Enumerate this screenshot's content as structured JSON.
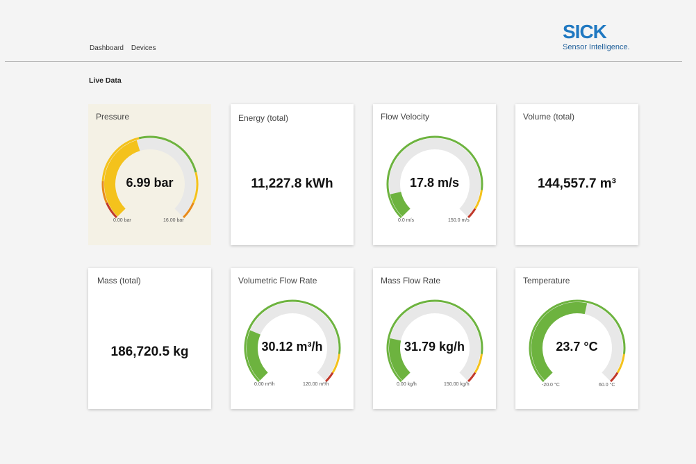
{
  "nav": {
    "items": [
      "Dashboard",
      "Devices"
    ]
  },
  "logo": {
    "brand": "SICK",
    "tagline": "Sensor Intelligence."
  },
  "section_title": "Live Data",
  "colors": {
    "green": "#6db33f",
    "yellow": "#f4c21c",
    "orange": "#e88a1a",
    "red": "#c0392b",
    "track": "#e8e8e8",
    "brand_blue": "#1f78c1"
  },
  "cards": {
    "pressure": {
      "label": "Pressure",
      "value": "6.99 bar",
      "min": "0.00 bar",
      "max": "16.00 bar",
      "fraction": 0.437
    },
    "energy": {
      "label": "Energy (total)",
      "value": "11,227.8 kWh"
    },
    "flow_velocity": {
      "label": "Flow Velocity",
      "value": "17.8 m/s",
      "min": "0.0 m/s",
      "max": "150.0 m/s",
      "fraction": 0.119
    },
    "volume": {
      "label": "Volume (total)",
      "value": "144,557.7 m³"
    },
    "mass": {
      "label": "Mass (total)",
      "value": "186,720.5 kg"
    },
    "volumetric_flow": {
      "label": "Volumetric Flow Rate",
      "value": "30.12 m³/h",
      "min": "0.00 m³/h",
      "max": "120.00 m³/h",
      "fraction": 0.251
    },
    "mass_flow": {
      "label": "Mass Flow Rate",
      "value": "31.79 kg/h",
      "min": "0.00 kg/h",
      "max": "150.00 kg/h",
      "fraction": 0.212
    },
    "temperature": {
      "label": "Temperature",
      "value": "23.7 °C",
      "min": "-20.0 °C",
      "max": "60.0 °C",
      "fraction": 0.546
    }
  }
}
